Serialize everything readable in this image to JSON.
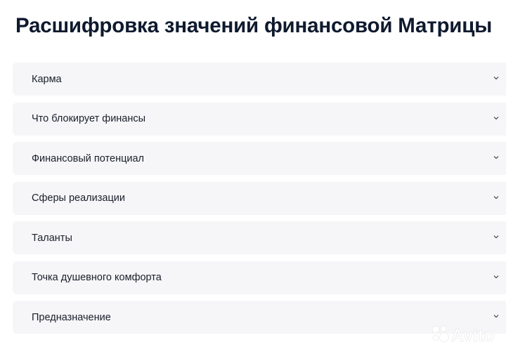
{
  "page_title": "Расшифровка значений финансовой Матрицы",
  "accordion": {
    "items": [
      {
        "label": "Карма",
        "icon": "chevron-down-icon"
      },
      {
        "label": "Что блокирует финансы",
        "icon": "chevron-down-icon"
      },
      {
        "label": "Финансовый потенциал",
        "icon": "chevron-down-icon"
      },
      {
        "label": "Сферы реализации",
        "icon": "chevron-down-icon"
      },
      {
        "label": "Таланты",
        "icon": "chevron-down-icon"
      },
      {
        "label": "Точка душевного комфорта",
        "icon": "chevron-down-icon"
      },
      {
        "label": "Предназначение",
        "icon": "chevron-down-icon"
      }
    ]
  },
  "watermark": {
    "text": "Avito",
    "color": "#ffffff"
  },
  "colors": {
    "title": "#0f1a2e",
    "item_bg": "#f6f6f8",
    "text": "#1a1f2b"
  }
}
